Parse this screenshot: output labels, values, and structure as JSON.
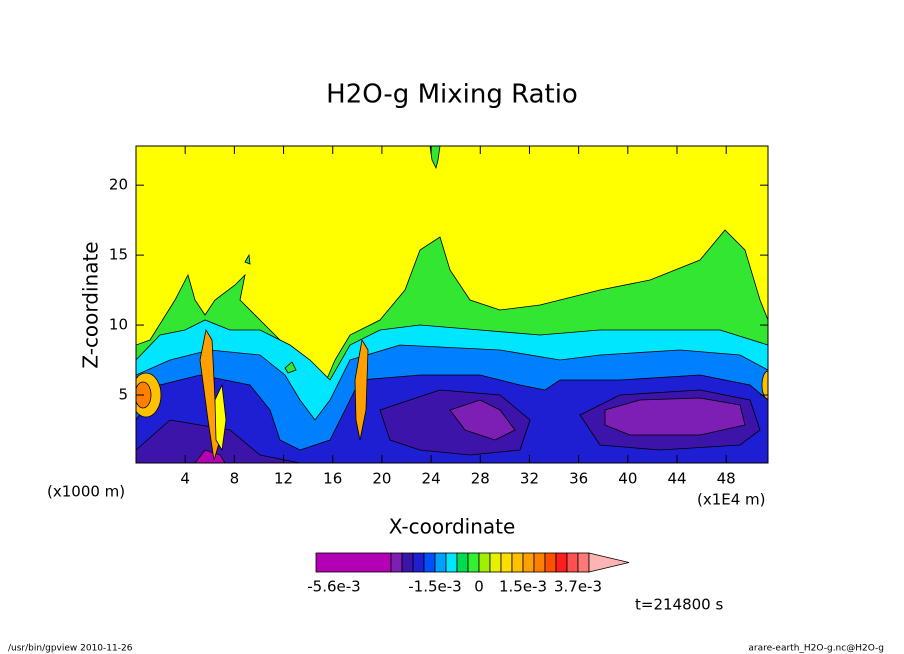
{
  "chart_data": {
    "type": "contour",
    "title": "H2O-g Mixing Ratio",
    "xlabel": "X-coordinate",
    "ylabel": "Z-coordinate",
    "y_unit_label": "(x1000 m)",
    "x_unit_label": "(x1E4 m)",
    "xlim": [
      0,
      51.4
    ],
    "xticks": [
      4,
      8,
      12,
      16,
      20,
      24,
      28,
      32,
      36,
      40,
      44,
      48
    ],
    "ylim": [
      0.14,
      22.8
    ],
    "yticks": [
      5,
      10,
      15,
      20
    ],
    "colorbar": {
      "levels": [
        -0.0056,
        -0.0035,
        -0.003,
        -0.0025,
        -0.002,
        -0.0015,
        -0.0011,
        -0.0007,
        -0.0003,
        0,
        0.0004,
        0.0008,
        0.0011,
        0.0015,
        0.0019,
        0.0024,
        0.0028,
        0.0033,
        0.0037,
        0.0041
      ],
      "colors": [
        "#b400b4",
        "#7d1eb4",
        "#3c14aa",
        "#1e1ed2",
        "#0050ff",
        "#00a0ff",
        "#00e6ff",
        "#00dc50",
        "#32f032",
        "#a0f000",
        "#e6f000",
        "#ffdc00",
        "#ffc000",
        "#ffa000",
        "#ff8000",
        "#ff5000",
        "#ff1e1e",
        "#ff5050",
        "#ff7878"
      ],
      "extend_color": "#ffb4b4",
      "ticks": [
        {
          "value": -0.0056,
          "label": "-5.6e-3"
        },
        {
          "value": -0.0015,
          "label": "-1.5e-3"
        },
        {
          "value": 0,
          "label": "0"
        },
        {
          "value": 0.0015,
          "label": "1.5e-3"
        },
        {
          "value": 0.0037,
          "label": "3.7e-3"
        }
      ]
    },
    "annotations": [
      "t=214800 s",
      "/usr/bin/gpview  2010-11-26",
      "arare-earth_H2O-g.nc@H2O-g"
    ]
  }
}
